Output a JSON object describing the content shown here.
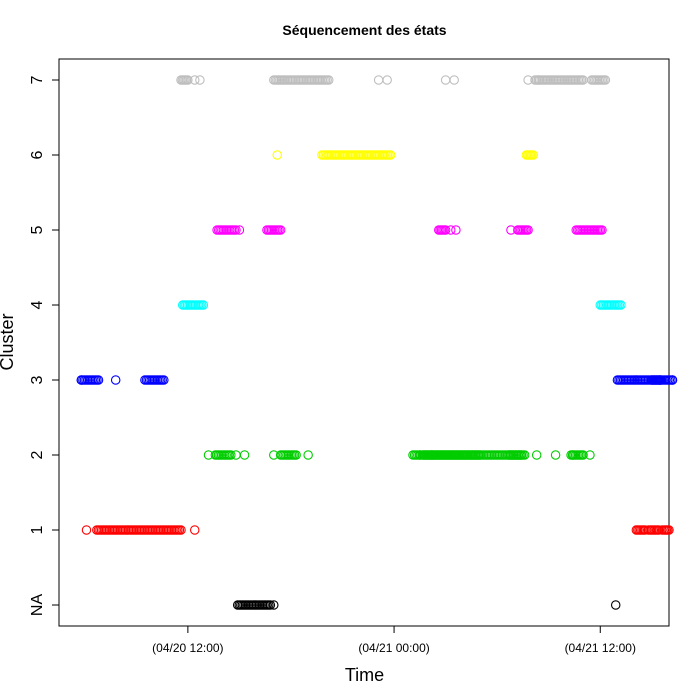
{
  "chart_data": {
    "type": "scatter",
    "title": "Séquencement des états",
    "xlabel": "Time",
    "ylabel": "Cluster",
    "x_unit": "hours from 04/20 00:00",
    "xlim": [
      4.5,
      40.0
    ],
    "y_categories": [
      "NA",
      "1",
      "2",
      "3",
      "4",
      "5",
      "6",
      "7"
    ],
    "x_ticks": [
      {
        "value": 12,
        "label": "(04/20 12:00)"
      },
      {
        "value": 24,
        "label": "(04/21 00:00)"
      },
      {
        "value": 36,
        "label": "(04/21 12:00)"
      }
    ],
    "grid": false,
    "legend": "none",
    "series": [
      {
        "cluster": "NA",
        "color": "#000000",
        "segments": [
          [
            14.9,
            16.8
          ]
        ],
        "points": [
          17.0,
          36.9
        ]
      },
      {
        "cluster": "1",
        "color": "#FF0000",
        "segments": [
          [
            6.7,
            11.6
          ],
          [
            38.1,
            38.6
          ],
          [
            38.9,
            39.4
          ],
          [
            39.7,
            40.0
          ]
        ],
        "points": [
          6.1,
          12.4,
          38.8,
          39.6
        ]
      },
      {
        "cluster": "2",
        "color": "#00CC00",
        "segments": [
          [
            13.6,
            14.5
          ],
          [
            17.4,
            18.3
          ],
          [
            30.7,
            31.4
          ],
          [
            34.3,
            35.0
          ],
          [
            25.1,
            29.0
          ],
          [
            25.7,
            31.6
          ]
        ],
        "points": [
          13.2,
          14.8,
          15.3,
          17.0,
          19.0,
          25.5,
          26.2,
          32.3,
          33.4,
          34.4,
          35.4
        ]
      },
      {
        "cluster": "3",
        "color": "#0000FF",
        "segments": [
          [
            5.8,
            6.8
          ],
          [
            9.5,
            10.6
          ],
          [
            37.0,
            38.8
          ],
          [
            38.9,
            39.5
          ],
          [
            39.0,
            40.2
          ]
        ],
        "points": [
          7.8,
          5.8,
          39.5,
          40.2
        ]
      },
      {
        "cluster": "4",
        "color": "#00FFFF",
        "segments": [
          [
            11.7,
            12.9
          ],
          [
            36.0,
            37.2
          ]
        ],
        "points": []
      },
      {
        "cluster": "5",
        "color": "#FF00FF",
        "segments": [
          [
            13.7,
            14.8
          ],
          [
            16.6,
            17.4
          ],
          [
            26.6,
            27.0
          ],
          [
            31.2,
            31.8
          ],
          [
            34.6,
            36.1
          ]
        ],
        "points": [
          15.0,
          27.3,
          27.6,
          30.8
        ]
      },
      {
        "cluster": "6",
        "color": "#FFFF00",
        "segments": [
          [
            19.8,
            23.8
          ],
          [
            31.7,
            32.1
          ]
        ],
        "points": [
          17.2
        ]
      },
      {
        "cluster": "7",
        "color": "#BEBEBE",
        "segments": [
          [
            11.6,
            12.0
          ],
          [
            17.0,
            17.7
          ],
          [
            17.8,
            20.2
          ],
          [
            32.2,
            35.0
          ],
          [
            35.5,
            36.3
          ]
        ],
        "points": [
          12.4,
          12.7,
          23.1,
          23.6,
          27.0,
          27.5,
          31.8,
          32.4
        ]
      }
    ]
  }
}
